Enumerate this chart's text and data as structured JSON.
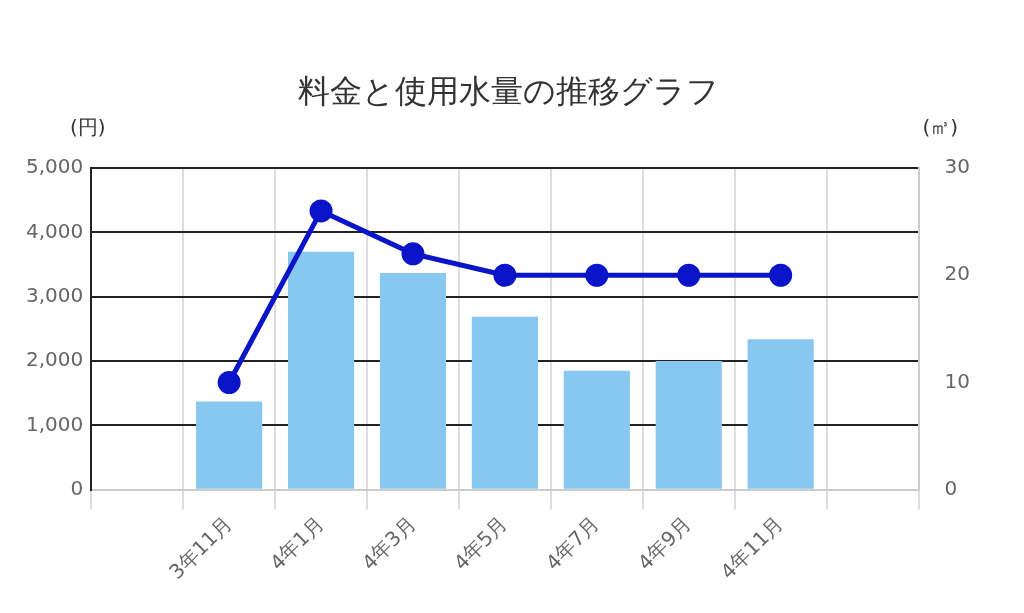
{
  "chart_data": {
    "type": "bar",
    "title": "料金と使用水量の推移グラフ",
    "ylabel": "(円)",
    "y2label": "(㎥)",
    "categories": [
      null,
      "3年11月",
      "4年1月",
      "4年3月",
      "4年5月",
      "4年7月",
      "4年9月",
      "4年11月",
      null
    ],
    "series": [
      {
        "color": "#88c8f0",
        "values": [
          null,
          1370,
          3700,
          3370,
          2690,
          1850,
          2000,
          2340,
          null
        ]
      },
      {
        "type": "line",
        "axis": "y2",
        "color": "#0a14c8",
        "marker": "circle",
        "values": [
          null,
          10,
          26,
          22,
          20,
          20,
          20,
          20,
          null
        ]
      }
    ],
    "ylim": [
      0,
      5000
    ],
    "yticks": [
      0,
      {
        "value": 1000,
        "label": "1,000"
      },
      {
        "value": 2000,
        "label": "2,000"
      },
      {
        "value": 3000,
        "label": "3,000"
      },
      {
        "value": 4000,
        "label": "4,000"
      },
      {
        "value": 5000,
        "label": "5,000"
      }
    ],
    "y2lim": [
      0,
      30
    ],
    "y2ticks": [
      0,
      10,
      20,
      30
    ],
    "grid": true,
    "legend": false
  }
}
